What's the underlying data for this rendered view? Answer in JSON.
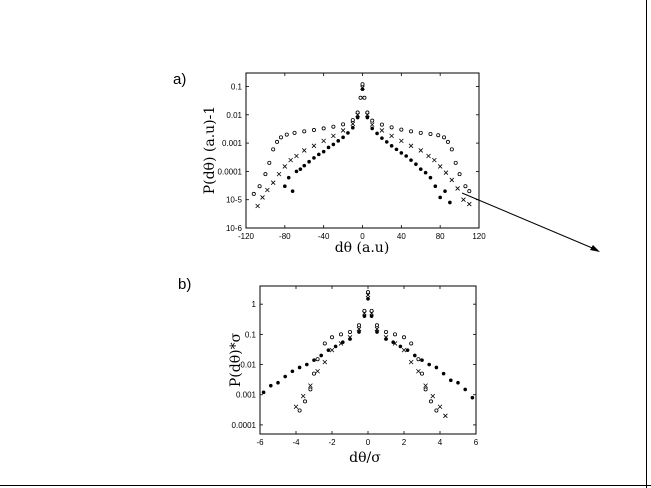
{
  "chart_data": [
    {
      "panel_label": "a)",
      "type": "scatter",
      "title": "",
      "xlabel": "dθ  (a.u)",
      "ylabel": "P(dθ) (a.u)-1",
      "xlim": [
        -120,
        120
      ],
      "ylim": [
        1e-06,
        0.3
      ],
      "yscale": "log",
      "x_ticks": [
        -120,
        -80,
        -40,
        0,
        40,
        80,
        120
      ],
      "x_tick_labels": [
        "-120",
        "-80",
        "-40",
        "0",
        "40",
        "80",
        "120"
      ],
      "y_ticks": [
        1e-06,
        1e-05,
        0.0001,
        0.001,
        0.01,
        0.1
      ],
      "y_tick_labels": [
        "10-6",
        "10-5",
        "0.0001",
        "0.001",
        "0.01",
        "0.1"
      ],
      "grid": false,
      "legend": "none",
      "series": [
        {
          "marker": "open-circle",
          "points": [
            [
              -112,
              1.6e-05
            ],
            [
              -106,
              3e-05
            ],
            [
              -100,
              8e-05
            ],
            [
              -96,
              0.0002
            ],
            [
              -92,
              0.0006
            ],
            [
              -88,
              0.0011
            ],
            [
              -84,
              0.0016
            ],
            [
              -78,
              0.002
            ],
            [
              -70,
              0.0023
            ],
            [
              -60,
              0.0026
            ],
            [
              -50,
              0.0029
            ],
            [
              -40,
              0.0033
            ],
            [
              -30,
              0.0038
            ],
            [
              -20,
              0.0046
            ],
            [
              -10,
              0.0065
            ],
            [
              -5,
              0.012
            ],
            [
              -2,
              0.04
            ],
            [
              0,
              0.12
            ],
            [
              2,
              0.04
            ],
            [
              5,
              0.012
            ],
            [
              10,
              0.0062
            ],
            [
              20,
              0.0045
            ],
            [
              30,
              0.0036
            ],
            [
              40,
              0.003
            ],
            [
              50,
              0.0026
            ],
            [
              60,
              0.0023
            ],
            [
              70,
              0.0021
            ],
            [
              78,
              0.0019
            ],
            [
              84,
              0.0016
            ],
            [
              88,
              0.0011
            ],
            [
              92,
              0.0006
            ],
            [
              96,
              0.0002
            ],
            [
              100,
              8e-05
            ],
            [
              106,
              3e-05
            ],
            [
              110,
              2e-05
            ]
          ]
        },
        {
          "marker": "cross",
          "points": [
            [
              -108,
              6e-06
            ],
            [
              -103,
              1.2e-05
            ],
            [
              -98,
              2.2e-05
            ],
            [
              -92,
              4e-05
            ],
            [
              -86,
              8e-05
            ],
            [
              -80,
              0.00015
            ],
            [
              -74,
              0.00025
            ],
            [
              -68,
              0.00035
            ],
            [
              -60,
              0.00055
            ],
            [
              -50,
              0.0008
            ],
            [
              -40,
              0.0012
            ],
            [
              -30,
              0.0018
            ],
            [
              -20,
              0.0028
            ],
            [
              -10,
              0.0048
            ],
            [
              -5,
              0.01
            ],
            [
              0,
              0.09
            ],
            [
              5,
              0.01
            ],
            [
              10,
              0.0045
            ],
            [
              20,
              0.0028
            ],
            [
              30,
              0.0018
            ],
            [
              40,
              0.0012
            ],
            [
              50,
              0.0008
            ],
            [
              60,
              0.00055
            ],
            [
              68,
              0.00035
            ],
            [
              74,
              0.00025
            ],
            [
              80,
              0.00015
            ],
            [
              86,
              9e-05
            ],
            [
              92,
              5e-05
            ],
            [
              98,
              2.5e-05
            ],
            [
              104,
              1e-05
            ],
            [
              110,
              7e-06
            ]
          ]
        },
        {
          "marker": "filled-circle",
          "points": [
            [
              -80,
              3e-05
            ],
            [
              -76,
              6e-05
            ],
            [
              -72,
              2e-05
            ],
            [
              -68,
              0.0001
            ],
            [
              -64,
              0.00012
            ],
            [
              -60,
              0.00016
            ],
            [
              -55,
              0.00022
            ],
            [
              -50,
              0.0003
            ],
            [
              -45,
              0.0004
            ],
            [
              -40,
              0.0005
            ],
            [
              -35,
              0.0007
            ],
            [
              -30,
              0.0009
            ],
            [
              -25,
              0.0012
            ],
            [
              -20,
              0.0016
            ],
            [
              -15,
              0.0023
            ],
            [
              -10,
              0.0035
            ],
            [
              -5,
              0.008
            ],
            [
              0,
              0.08
            ],
            [
              5,
              0.008
            ],
            [
              10,
              0.0033
            ],
            [
              15,
              0.0022
            ],
            [
              20,
              0.0015
            ],
            [
              25,
              0.0011
            ],
            [
              30,
              0.0008
            ],
            [
              35,
              0.0006
            ],
            [
              40,
              0.00045
            ],
            [
              45,
              0.00035
            ],
            [
              50,
              0.00025
            ],
            [
              55,
              0.00018
            ],
            [
              60,
              0.00012
            ],
            [
              65,
              9e-05
            ],
            [
              70,
              6e-05
            ],
            [
              75,
              3e-05
            ],
            [
              80,
              1.2e-05
            ],
            [
              85,
              2e-05
            ],
            [
              90,
              8e-06
            ]
          ]
        }
      ]
    },
    {
      "panel_label": "b)",
      "type": "scatter",
      "title": "",
      "xlabel": "dθ/σ",
      "ylabel": "P(dθ)*σ",
      "xlim": [
        -6,
        6
      ],
      "ylim": [
        5e-05,
        4
      ],
      "yscale": "log",
      "x_ticks": [
        -6,
        -4,
        -2,
        0,
        2,
        4,
        6
      ],
      "x_tick_labels": [
        "-6",
        "-4",
        "-2",
        "0",
        "2",
        "4",
        "6"
      ],
      "y_ticks": [
        0.0001,
        0.001,
        0.01,
        0.1,
        1
      ],
      "y_tick_labels": [
        "0.0001",
        "0.001",
        "0.01",
        "0.1",
        "1"
      ],
      "grid": false,
      "legend": "none",
      "series": [
        {
          "marker": "open-circle",
          "points": [
            [
              -3.8,
              0.0003
            ],
            [
              -3.5,
              0.0006
            ],
            [
              -3.2,
              0.0015
            ],
            [
              -3,
              0.005
            ],
            [
              -2.8,
              0.015
            ],
            [
              -2.4,
              0.05
            ],
            [
              -2,
              0.08
            ],
            [
              -1.5,
              0.1
            ],
            [
              -1,
              0.12
            ],
            [
              -0.5,
              0.2
            ],
            [
              -0.2,
              0.6
            ],
            [
              0,
              2.5
            ],
            [
              0.2,
              0.6
            ],
            [
              0.5,
              0.2
            ],
            [
              1,
              0.12
            ],
            [
              1.5,
              0.1
            ],
            [
              2,
              0.08
            ],
            [
              2.4,
              0.05
            ],
            [
              2.8,
              0.015
            ],
            [
              3,
              0.005
            ],
            [
              3.2,
              0.0015
            ],
            [
              3.5,
              0.0006
            ],
            [
              3.8,
              0.0003
            ]
          ]
        },
        {
          "marker": "cross",
          "points": [
            [
              -4,
              0.0004
            ],
            [
              -3.6,
              0.0009
            ],
            [
              -3.2,
              0.002
            ],
            [
              -2.8,
              0.006
            ],
            [
              -2.4,
              0.012
            ],
            [
              -2,
              0.03
            ],
            [
              -1.5,
              0.05
            ],
            [
              -1,
              0.08
            ],
            [
              -0.5,
              0.15
            ],
            [
              -0.2,
              0.5
            ],
            [
              0,
              2
            ],
            [
              0.2,
              0.5
            ],
            [
              0.5,
              0.15
            ],
            [
              1,
              0.08
            ],
            [
              1.5,
              0.05
            ],
            [
              2,
              0.03
            ],
            [
              2.4,
              0.012
            ],
            [
              2.8,
              0.006
            ],
            [
              3.2,
              0.002
            ],
            [
              3.6,
              0.0009
            ],
            [
              4,
              0.0004
            ],
            [
              4.3,
              0.0002
            ]
          ]
        },
        {
          "marker": "filled-circle",
          "points": [
            [
              -5.8,
              0.0012
            ],
            [
              -5.4,
              0.002
            ],
            [
              -5,
              0.0025
            ],
            [
              -4.6,
              0.004
            ],
            [
              -4.2,
              0.006
            ],
            [
              -3.8,
              0.008
            ],
            [
              -3.4,
              0.01
            ],
            [
              -3,
              0.014
            ],
            [
              -2.6,
              0.02
            ],
            [
              -2.2,
              0.03
            ],
            [
              -1.8,
              0.04
            ],
            [
              -1.4,
              0.055
            ],
            [
              -1,
              0.07
            ],
            [
              -0.5,
              0.12
            ],
            [
              -0.2,
              0.4
            ],
            [
              0,
              1.5
            ],
            [
              0.2,
              0.4
            ],
            [
              0.5,
              0.12
            ],
            [
              1,
              0.07
            ],
            [
              1.4,
              0.055
            ],
            [
              1.8,
              0.04
            ],
            [
              2.2,
              0.03
            ],
            [
              2.6,
              0.02
            ],
            [
              3,
              0.014
            ],
            [
              3.4,
              0.01
            ],
            [
              3.8,
              0.008
            ],
            [
              4.2,
              0.005
            ],
            [
              4.6,
              0.003
            ],
            [
              5,
              0.0025
            ],
            [
              5.4,
              0.0015
            ],
            [
              5.8,
              0.0008
            ]
          ]
        }
      ]
    }
  ]
}
